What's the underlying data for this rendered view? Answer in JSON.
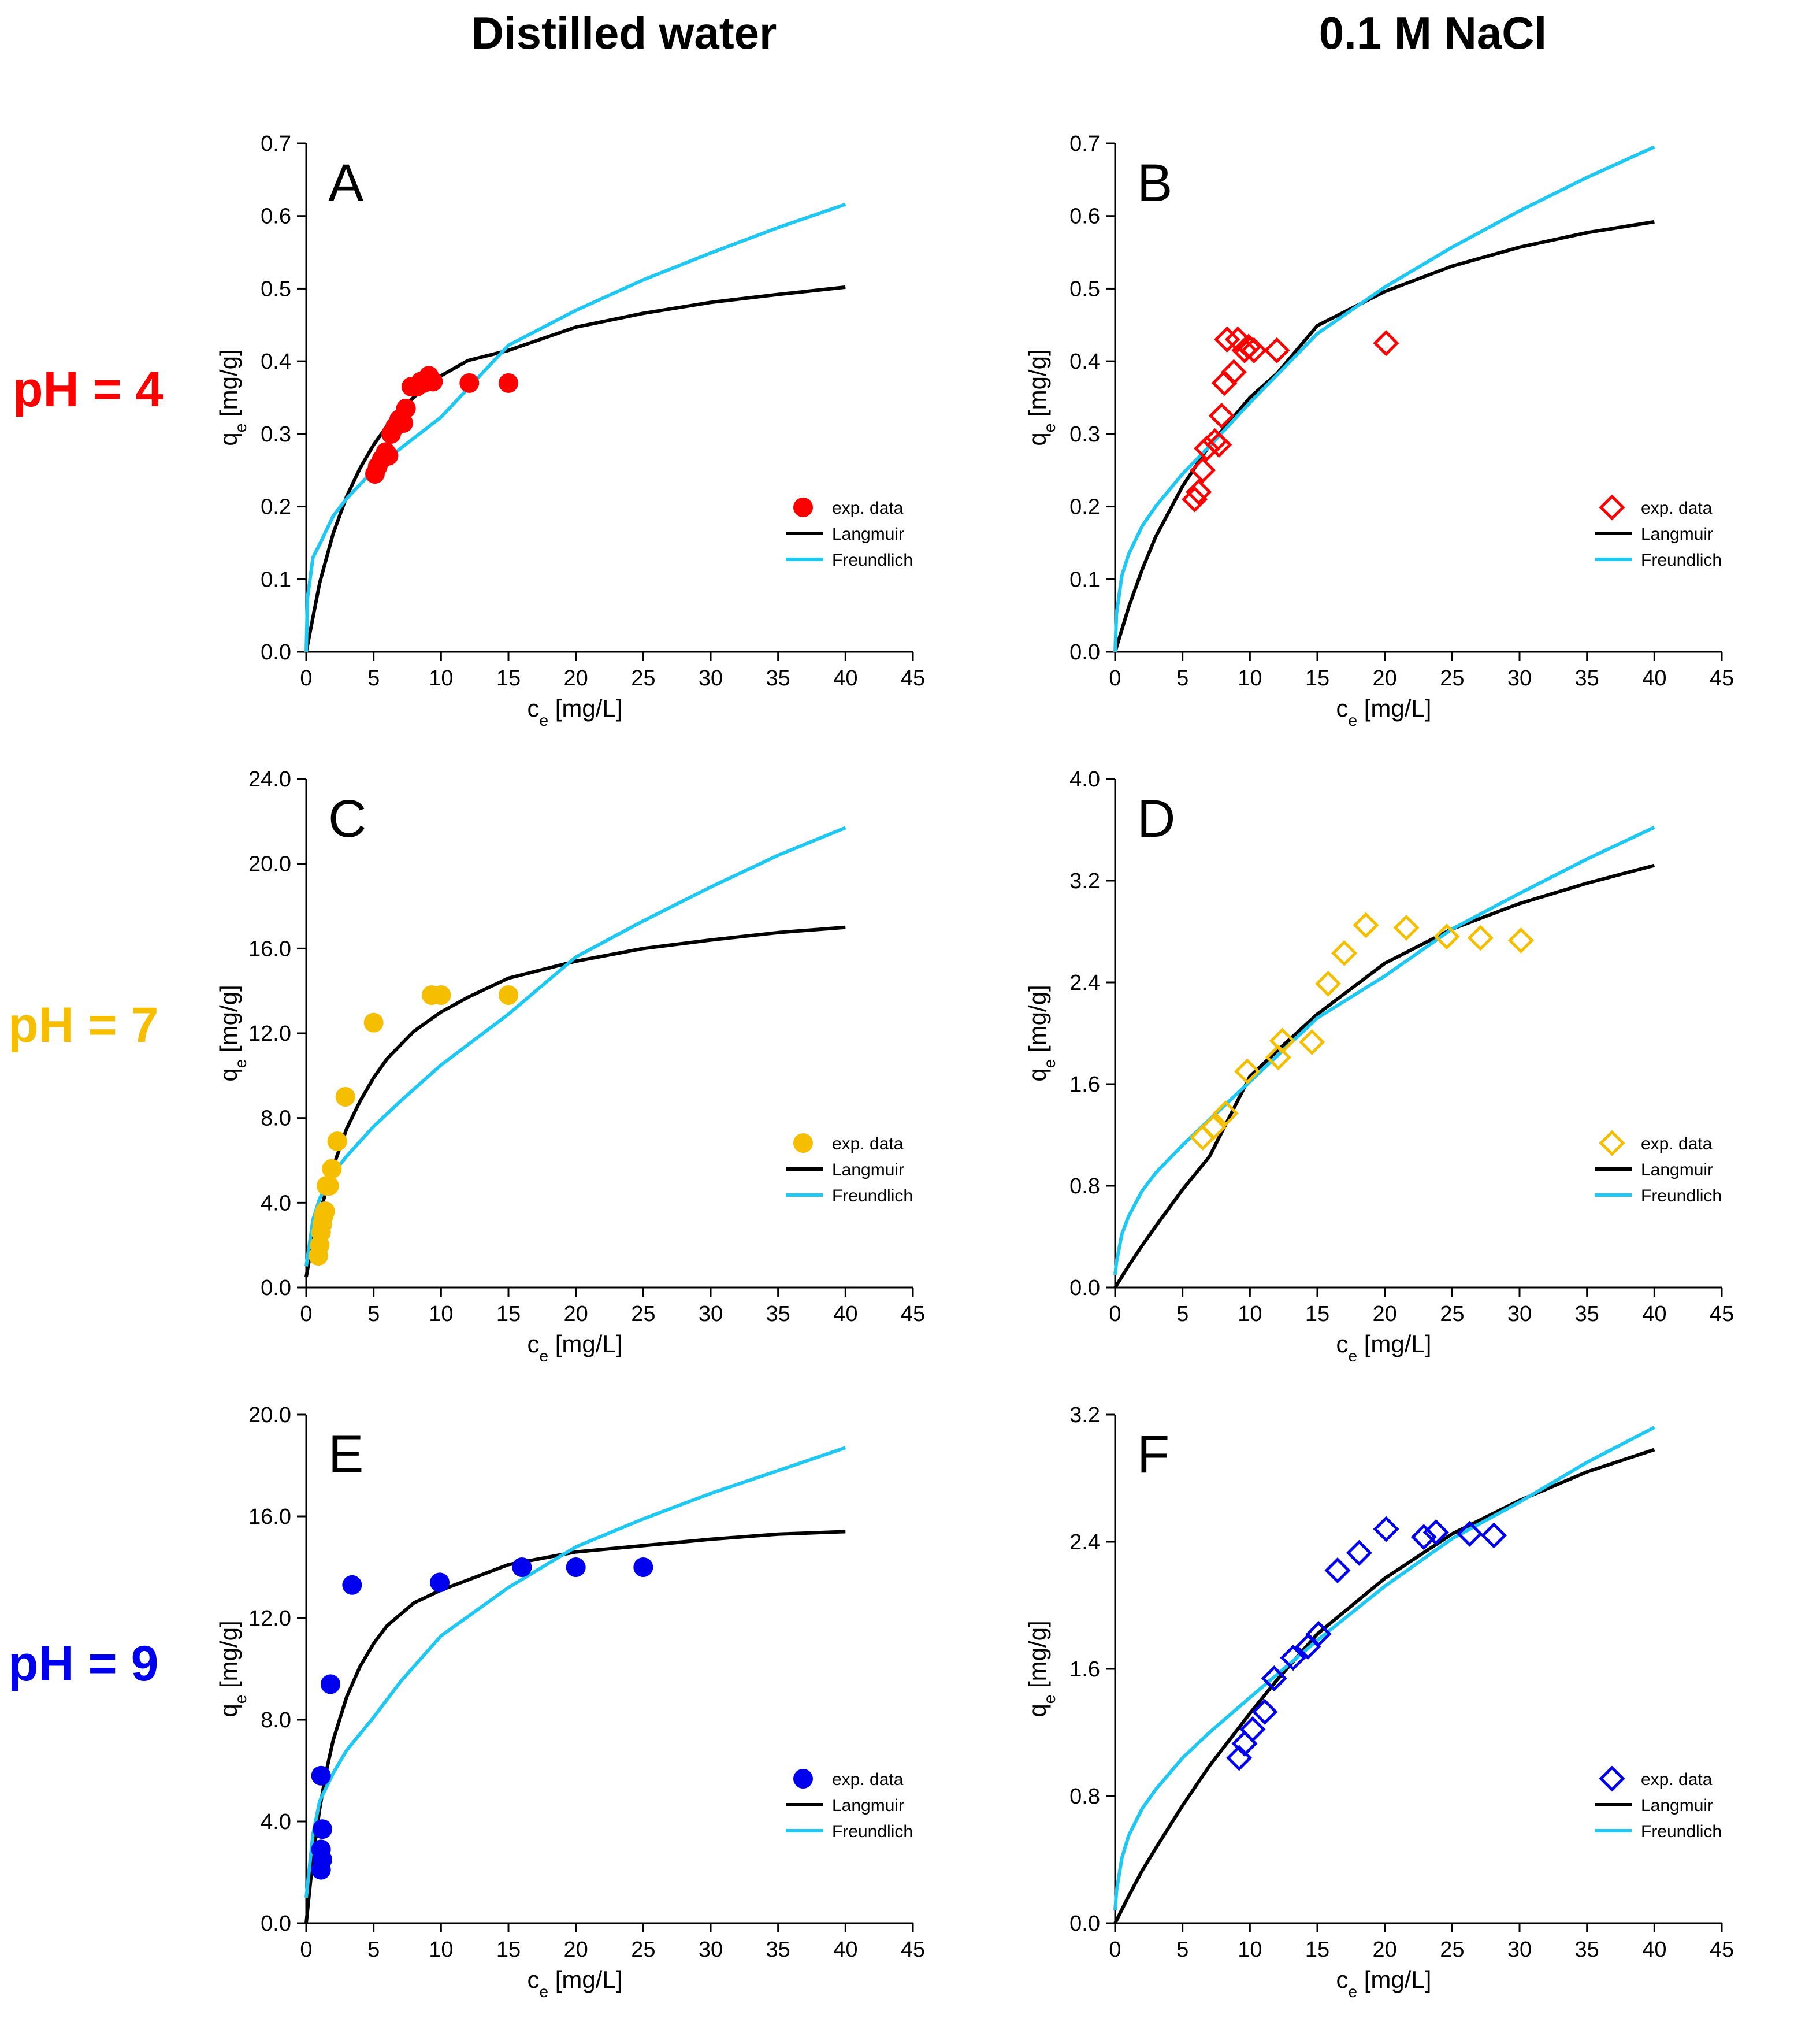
{
  "headers": {
    "left": "Distilled water",
    "right": "0.1 M NaCl"
  },
  "rows": [
    {
      "label": "pH = 4",
      "color": "#ff0000"
    },
    {
      "label": "pH = 7",
      "color": "#f5bf00"
    },
    {
      "label": "pH = 9",
      "color": "#0000ee"
    }
  ],
  "curve_colors": {
    "langmuir": "#000000",
    "freundlich": "#1fc8f2"
  },
  "chart_data": [
    {
      "type": "scatter",
      "panel_letter": "A",
      "xlabel": "c",
      "xlabel_sub": "e",
      "xlabel_unit": " [mg/L]",
      "ylabel": "q",
      "ylabel_sub": "e",
      "ylabel_unit": " [mg/g]",
      "xlim": [
        0,
        45
      ],
      "ylim": [
        0,
        0.7
      ],
      "xticks": [
        0,
        5,
        10,
        15,
        20,
        25,
        30,
        35,
        40,
        45
      ],
      "xtick_labels": [
        "0",
        "5",
        "10",
        "15",
        "20",
        "25",
        "30",
        "35",
        "40",
        "45"
      ],
      "yticks": [
        0,
        0.1,
        0.2,
        0.3,
        0.4,
        0.5,
        0.6,
        0.7
      ],
      "ytick_labels": [
        "0.0",
        "0.1",
        "0.2",
        "0.3",
        "0.4",
        "0.5",
        "0.6",
        "0.7"
      ],
      "marker": "circle",
      "marker_color": "#ff0000",
      "legend": [
        "exp. data",
        "Langmuir",
        "Freundlich"
      ],
      "series": [
        {
          "name": "exp. data",
          "x": [
            5.1,
            5.3,
            5.6,
            5.9,
            6.1,
            6.3,
            6.6,
            6.9,
            7.2,
            7.4,
            7.8,
            8.2,
            8.5,
            8.7,
            8.9,
            9.1,
            9.4,
            12.1,
            15.0
          ],
          "y": [
            0.245,
            0.255,
            0.265,
            0.275,
            0.27,
            0.3,
            0.31,
            0.32,
            0.315,
            0.335,
            0.365,
            0.365,
            0.372,
            0.37,
            0.375,
            0.38,
            0.372,
            0.37,
            0.37
          ]
        },
        {
          "name": "Langmuir",
          "x": [
            0,
            1,
            2,
            3,
            4,
            5,
            6,
            8,
            10,
            12,
            15,
            20,
            25,
            30,
            35,
            40
          ],
          "y": [
            0,
            0.095,
            0.163,
            0.214,
            0.253,
            0.285,
            0.311,
            0.351,
            0.38,
            0.401,
            0.415,
            0.447,
            0.466,
            0.481,
            0.492,
            0.502
          ]
        },
        {
          "name": "Freundlich",
          "x": [
            0,
            0.1,
            0.5,
            1,
            2,
            3,
            5,
            7,
            10,
            15,
            20,
            25,
            30,
            35,
            40
          ],
          "y": [
            0,
            0.075,
            0.13,
            0.148,
            0.187,
            0.211,
            0.25,
            0.28,
            0.323,
            0.422,
            0.47,
            0.512,
            0.549,
            0.584,
            0.616
          ]
        }
      ]
    },
    {
      "type": "scatter",
      "panel_letter": "B",
      "xlabel": "c",
      "xlabel_sub": "e",
      "xlabel_unit": " [mg/L]",
      "ylabel": "q",
      "ylabel_sub": "e",
      "ylabel_unit": " [mg/g]",
      "xlim": [
        0,
        45
      ],
      "ylim": [
        0,
        0.7
      ],
      "xticks": [
        0,
        5,
        10,
        15,
        20,
        25,
        30,
        35,
        40,
        45
      ],
      "xtick_labels": [
        "0",
        "5",
        "10",
        "15",
        "20",
        "25",
        "30",
        "35",
        "40",
        "45"
      ],
      "yticks": [
        0,
        0.1,
        0.2,
        0.3,
        0.4,
        0.5,
        0.6,
        0.7
      ],
      "ytick_labels": [
        "0.0",
        "0.1",
        "0.2",
        "0.3",
        "0.4",
        "0.5",
        "0.6",
        "0.7"
      ],
      "marker": "diamond",
      "marker_color": "#ff0000",
      "legend": [
        "exp. data",
        "Langmuir",
        "Freundlich"
      ],
      "series": [
        {
          "name": "exp. data",
          "x": [
            5.9,
            6.2,
            6.5,
            6.8,
            7.4,
            7.7,
            7.9,
            8.1,
            8.3,
            8.8,
            9.1,
            9.6,
            9.9,
            10.3,
            12.0,
            20.1
          ],
          "y": [
            0.21,
            0.22,
            0.25,
            0.28,
            0.29,
            0.285,
            0.325,
            0.37,
            0.43,
            0.385,
            0.43,
            0.415,
            0.42,
            0.415,
            0.415,
            0.425
          ]
        },
        {
          "name": "Langmuir",
          "x": [
            0,
            1,
            2,
            3,
            5,
            7,
            10,
            12,
            15,
            20,
            25,
            30,
            35,
            40
          ],
          "y": [
            0,
            0.061,
            0.113,
            0.158,
            0.228,
            0.284,
            0.35,
            0.383,
            0.449,
            0.496,
            0.531,
            0.557,
            0.577,
            0.592
          ]
        },
        {
          "name": "Freundlich",
          "x": [
            0,
            0.1,
            0.5,
            1,
            2,
            3,
            5,
            7,
            10,
            15,
            20,
            25,
            30,
            35,
            40
          ],
          "y": [
            0,
            0.052,
            0.105,
            0.134,
            0.173,
            0.2,
            0.245,
            0.283,
            0.343,
            0.438,
            0.502,
            0.557,
            0.607,
            0.653,
            0.695
          ]
        }
      ]
    },
    {
      "type": "scatter",
      "panel_letter": "C",
      "xlabel": "c",
      "xlabel_sub": "e",
      "xlabel_unit": " [mg/L]",
      "ylabel": "q",
      "ylabel_sub": "e",
      "ylabel_unit": " [mg/g]",
      "xlim": [
        0,
        45
      ],
      "ylim": [
        0,
        24
      ],
      "xticks": [
        0,
        5,
        10,
        15,
        20,
        25,
        30,
        35,
        40,
        45
      ],
      "xtick_labels": [
        "0",
        "5",
        "10",
        "15",
        "20",
        "25",
        "30",
        "35",
        "40",
        "45"
      ],
      "yticks": [
        0,
        4,
        8,
        12,
        16,
        20,
        24
      ],
      "ytick_labels": [
        "0.0",
        "4.0",
        "8.0",
        "12.0",
        "16.0",
        "20.0",
        "24.0"
      ],
      "marker": "circle",
      "marker_color": "#f5bf00",
      "legend": [
        "exp. data",
        "Langmuir",
        "Freundlich"
      ],
      "series": [
        {
          "name": "exp. data",
          "x": [
            0.9,
            1.0,
            1.1,
            1.2,
            1.3,
            1.4,
            1.5,
            1.7,
            1.9,
            2.3,
            2.9,
            5.0,
            9.3,
            10.0,
            15.0
          ],
          "y": [
            1.5,
            2.0,
            2.6,
            3.0,
            3.4,
            3.6,
            4.8,
            4.8,
            5.6,
            6.9,
            9.0,
            12.5,
            13.8,
            13.8,
            13.8
          ]
        },
        {
          "name": "Langmuir",
          "x": [
            0,
            0.5,
            1,
            2,
            3,
            4,
            5,
            6,
            8,
            10,
            12,
            15,
            20,
            25,
            30,
            35,
            40
          ],
          "y": [
            0.5,
            2.3,
            3.5,
            5.7,
            7.5,
            8.8,
            9.9,
            10.8,
            12.1,
            13.0,
            13.7,
            14.6,
            15.4,
            16.0,
            16.4,
            16.75,
            17.0
          ]
        },
        {
          "name": "Freundlich",
          "x": [
            0,
            0.5,
            1,
            2,
            3,
            5,
            7,
            10,
            15,
            20,
            25,
            30,
            35,
            40
          ],
          "y": [
            1.0,
            3.2,
            4.2,
            5.4,
            6.2,
            7.6,
            8.8,
            10.5,
            12.9,
            15.6,
            17.3,
            18.9,
            20.4,
            21.7
          ]
        }
      ]
    },
    {
      "type": "scatter",
      "panel_letter": "D",
      "xlabel": "c",
      "xlabel_sub": "e",
      "xlabel_unit": " [mg/L]",
      "ylabel": "q",
      "ylabel_sub": "e",
      "ylabel_unit": " [mg/g]",
      "xlim": [
        0,
        45
      ],
      "ylim": [
        0,
        4.0
      ],
      "xticks": [
        0,
        5,
        10,
        15,
        20,
        25,
        30,
        35,
        40,
        45
      ],
      "xtick_labels": [
        "0",
        "5",
        "10",
        "15",
        "20",
        "25",
        "30",
        "35",
        "40",
        "45"
      ],
      "yticks": [
        0,
        0.8,
        1.6,
        2.4,
        3.2,
        4.0
      ],
      "ytick_labels": [
        "0.0",
        "0.8",
        "1.6",
        "2.4",
        "3.2",
        "4.0"
      ],
      "marker": "diamond",
      "marker_color": "#f5bf00",
      "legend": [
        "exp. data",
        "Langmuir",
        "Freundlich"
      ],
      "series": [
        {
          "name": "exp. data",
          "x": [
            6.5,
            7.3,
            8.2,
            9.8,
            12.1,
            12.4,
            14.6,
            15.8,
            17.0,
            18.6,
            21.6,
            24.6,
            27.1,
            30.1
          ],
          "y": [
            1.18,
            1.26,
            1.37,
            1.7,
            1.81,
            1.94,
            1.93,
            2.39,
            2.63,
            2.85,
            2.83,
            2.76,
            2.75,
            2.73
          ]
        },
        {
          "name": "Langmuir",
          "x": [
            0,
            1,
            2,
            3,
            5,
            7,
            10,
            12,
            15,
            20,
            25,
            30,
            35,
            40
          ],
          "y": [
            0,
            0.17,
            0.33,
            0.48,
            0.77,
            1.03,
            1.66,
            1.86,
            2.15,
            2.55,
            2.82,
            3.02,
            3.18,
            3.32
          ]
        },
        {
          "name": "Freundlich",
          "x": [
            0,
            0.1,
            0.5,
            1,
            2,
            3,
            5,
            7,
            10,
            15,
            20,
            25,
            30,
            35,
            40
          ],
          "y": [
            0.1,
            0.2,
            0.42,
            0.56,
            0.76,
            0.9,
            1.12,
            1.32,
            1.62,
            2.12,
            2.45,
            2.82,
            3.1,
            3.37,
            3.62
          ]
        }
      ]
    },
    {
      "type": "scatter",
      "panel_letter": "E",
      "xlabel": "c",
      "xlabel_sub": "e",
      "xlabel_unit": " [mg/L]",
      "ylabel": "q",
      "ylabel_sub": "e",
      "ylabel_unit": " [mg/g]",
      "xlim": [
        0,
        45
      ],
      "ylim": [
        0,
        20
      ],
      "xticks": [
        0,
        5,
        10,
        15,
        20,
        25,
        30,
        35,
        40,
        45
      ],
      "xtick_labels": [
        "0",
        "5",
        "10",
        "15",
        "20",
        "25",
        "30",
        "35",
        "40",
        "45"
      ],
      "yticks": [
        0,
        4,
        8,
        12,
        16,
        20
      ],
      "ytick_labels": [
        "0.0",
        "4.0",
        "8.0",
        "12.0",
        "16.0",
        "20.0"
      ],
      "marker": "circle",
      "marker_color": "#0000ee",
      "legend": [
        "exp. data",
        "Langmuir",
        "Freundlich"
      ],
      "series": [
        {
          "name": "exp. data",
          "x": [
            1.1,
            1.2,
            1.1,
            1.2,
            1.1,
            1.8,
            3.4,
            9.9,
            16.0,
            20.0,
            25.0
          ],
          "y": [
            2.1,
            2.5,
            2.9,
            3.7,
            5.8,
            9.4,
            13.3,
            13.4,
            14.0,
            14.0,
            14.0
          ]
        },
        {
          "name": "Langmuir",
          "x": [
            0,
            0.5,
            1,
            1.5,
            2,
            3,
            4,
            5,
            6,
            8,
            10,
            12,
            15,
            20,
            25,
            30,
            35,
            40
          ],
          "y": [
            0,
            2.6,
            4.5,
            6.0,
            7.2,
            8.9,
            10.1,
            11.0,
            11.7,
            12.6,
            13.1,
            13.5,
            14.1,
            14.6,
            14.85,
            15.1,
            15.3,
            15.4
          ]
        },
        {
          "name": "Freundlich",
          "x": [
            0,
            0.5,
            1,
            2,
            3,
            5,
            7,
            10,
            15,
            20,
            25,
            30,
            35,
            40
          ],
          "y": [
            1.0,
            3.5,
            4.8,
            5.9,
            6.8,
            8.1,
            9.5,
            11.3,
            13.2,
            14.8,
            15.9,
            16.9,
            17.8,
            18.7
          ]
        }
      ]
    },
    {
      "type": "scatter",
      "panel_letter": "F",
      "xlabel": "c",
      "xlabel_sub": "e",
      "xlabel_unit": " [mg/L]",
      "ylabel": "q",
      "ylabel_sub": "e",
      "ylabel_unit": " [mg/g]",
      "xlim": [
        0,
        45
      ],
      "ylim": [
        0,
        3.2
      ],
      "xticks": [
        0,
        5,
        10,
        15,
        20,
        25,
        30,
        35,
        40,
        45
      ],
      "xtick_labels": [
        "0",
        "5",
        "10",
        "15",
        "20",
        "25",
        "30",
        "35",
        "40",
        "45"
      ],
      "yticks": [
        0,
        0.8,
        1.6,
        2.4,
        3.2
      ],
      "ytick_labels": [
        "0.0",
        "0.8",
        "1.6",
        "2.4",
        "3.2"
      ],
      "marker": "diamond",
      "marker_color": "#0000ee",
      "legend": [
        "exp. data",
        "Langmuir",
        "Freundlich"
      ],
      "series": [
        {
          "name": "exp. data",
          "x": [
            9.2,
            9.6,
            10.2,
            11.1,
            11.8,
            13.2,
            14.3,
            15.1,
            16.5,
            18.1,
            20.1,
            22.9,
            23.8,
            26.3,
            28.1
          ],
          "y": [
            1.04,
            1.13,
            1.22,
            1.33,
            1.54,
            1.67,
            1.74,
            1.82,
            2.22,
            2.33,
            2.48,
            2.43,
            2.46,
            2.45,
            2.44
          ]
        },
        {
          "name": "Langmuir",
          "x": [
            0,
            1,
            2,
            3,
            5,
            7,
            10,
            12,
            15,
            20,
            25,
            30,
            35,
            40
          ],
          "y": [
            0,
            0.17,
            0.33,
            0.47,
            0.74,
            0.99,
            1.32,
            1.53,
            1.82,
            2.17,
            2.45,
            2.66,
            2.84,
            2.98
          ]
        },
        {
          "name": "Freundlich",
          "x": [
            0,
            0.1,
            0.5,
            1,
            2,
            3,
            5,
            7,
            10,
            15,
            20,
            25,
            30,
            35,
            40
          ],
          "y": [
            0.08,
            0.2,
            0.41,
            0.55,
            0.72,
            0.84,
            1.04,
            1.2,
            1.42,
            1.78,
            2.12,
            2.42,
            2.65,
            2.9,
            3.12
          ]
        }
      ]
    }
  ]
}
